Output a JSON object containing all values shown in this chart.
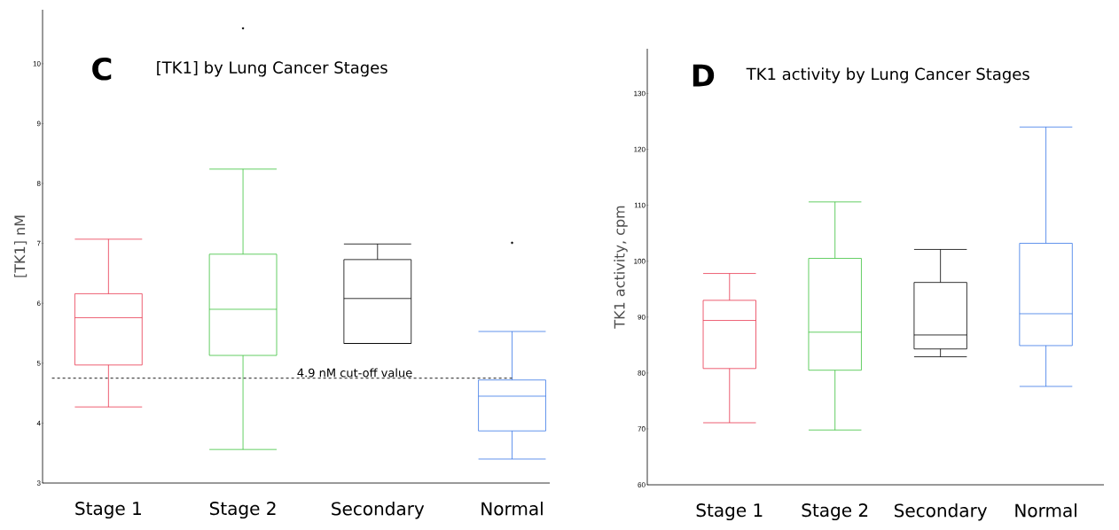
{
  "chart_data": [
    {
      "type": "box",
      "title": "[TK1] by Lung Cancer Stages",
      "ylabel": "[TK1] nM",
      "categories": [
        "Stage 1",
        "Stage 2",
        "Secondary",
        "Normal"
      ],
      "colors": [
        "#e8374f",
        "#3cc23c",
        "#000000",
        "#3b78e7"
      ],
      "boxes": [
        {
          "low": 4.27,
          "q1": 4.97,
          "median": 5.76,
          "q3": 6.16,
          "high": 7.07
        },
        {
          "low": 3.56,
          "q1": 5.13,
          "median": 5.9,
          "q3": 6.82,
          "high": 8.24,
          "outliers": [
            10.59
          ]
        },
        {
          "low": 5.33,
          "q1": 5.33,
          "median": 6.08,
          "q3": 6.73,
          "high": 6.99
        },
        {
          "low": 3.4,
          "q1": 3.87,
          "median": 4.45,
          "q3": 4.72,
          "high": 5.53,
          "outliers": [
            7.01
          ]
        }
      ],
      "ylim": [
        3,
        10.9
      ],
      "yticks": [
        3,
        4,
        5,
        6,
        7,
        8,
        9,
        10
      ],
      "ref_lines": [
        {
          "axis": "y",
          "value": 4.75,
          "label": "4.9 nM cut-off value",
          "color": "#000000",
          "line_style": "dashed"
        }
      ],
      "annotations": [
        "C"
      ]
    },
    {
      "type": "box",
      "title": "TK1 activity by Lung Cancer Stages",
      "ylabel": "TK1 activity, cpm",
      "categories": [
        "Stage 1",
        "Stage 2",
        "Secondary",
        "Normal"
      ],
      "colors": [
        "#e8374f",
        "#3cc23c",
        "#000000",
        "#3b78e7"
      ],
      "boxes": [
        {
          "low": 71.1,
          "q1": 80.8,
          "median": 89.4,
          "q3": 93.0,
          "high": 97.8
        },
        {
          "low": 69.8,
          "q1": 80.5,
          "median": 87.3,
          "q3": 100.5,
          "high": 110.6
        },
        {
          "low": 82.9,
          "q1": 84.3,
          "median": 86.8,
          "q3": 96.2,
          "high": 102.1
        },
        {
          "low": 77.6,
          "q1": 84.9,
          "median": 90.6,
          "q3": 103.2,
          "high": 124.0
        }
      ],
      "ylim": [
        60,
        138
      ],
      "yticks": [
        60,
        70,
        80,
        90,
        100,
        110,
        120,
        130
      ],
      "annotations": [
        "D"
      ]
    }
  ]
}
